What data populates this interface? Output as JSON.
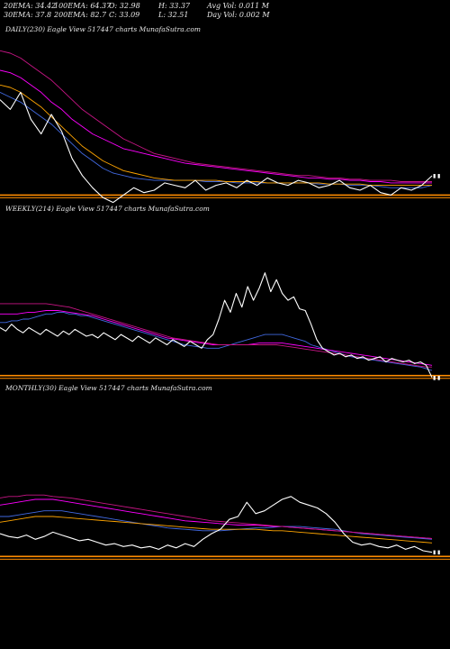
{
  "stats": {
    "ema20": "20EMA: 34.42",
    "ema100": "100EMA: 64.37",
    "open": "O: 32.98",
    "high": "H: 33.37",
    "avg_vol": "Avg Vol: 0.011  M",
    "ema30": "30EMA: 37.8",
    "ema200": "200EMA: 82.7",
    "close": "C: 33.09",
    "low": "L: 32.51",
    "day_vol": "Day Vol: 0.002  M"
  },
  "colors": {
    "background": "#000000",
    "price": "#ffffff",
    "baseline": "#ff8c00",
    "ema_short": "#4169e1",
    "ema_mid": "#ff00ff",
    "ema_long": "#c71585",
    "ema_extra": "#ffa500"
  },
  "chart_data": [
    {
      "type": "line",
      "title": "DAILY(230) Eagle   View  517447 charts MunafaSutra.com",
      "series": [
        {
          "role": "price",
          "color": "#ffffff",
          "values": [
            36.2,
            35.8,
            36.5,
            35.4,
            34.8,
            35.6,
            34.9,
            33.8,
            33.1,
            32.6,
            32.2,
            32.0,
            32.3,
            32.6,
            32.4,
            32.5,
            32.8,
            32.7,
            32.6,
            32.9,
            32.5,
            32.7,
            32.8,
            32.6,
            32.9,
            32.7,
            33.0,
            32.8,
            32.7,
            32.9,
            32.8,
            32.6,
            32.7,
            32.9,
            32.6,
            32.5,
            32.7,
            32.4,
            32.3,
            32.6,
            32.5,
            32.7,
            33.09
          ]
        },
        {
          "role": "ema",
          "color": "#4169e1",
          "values": [
            36.5,
            36.3,
            36.1,
            35.8,
            35.5,
            35.2,
            34.8,
            34.4,
            34.0,
            33.7,
            33.4,
            33.2,
            33.1,
            33.0,
            32.95,
            32.9,
            32.9,
            32.9,
            32.9,
            32.9,
            32.85,
            32.85,
            32.85,
            32.8,
            32.8,
            32.8,
            32.8,
            32.8,
            32.8,
            32.8,
            32.8,
            32.75,
            32.75,
            32.75,
            32.7,
            32.7,
            32.7,
            32.65,
            32.6,
            32.6,
            32.6,
            32.6,
            32.7
          ]
        },
        {
          "role": "ema",
          "color": "#ff00ff",
          "values": [
            37.4,
            37.3,
            37.1,
            36.8,
            36.5,
            36.1,
            35.8,
            35.4,
            35.1,
            34.8,
            34.6,
            34.4,
            34.2,
            34.1,
            34.0,
            33.9,
            33.8,
            33.7,
            33.6,
            33.55,
            33.5,
            33.45,
            33.4,
            33.35,
            33.3,
            33.25,
            33.2,
            33.15,
            33.1,
            33.05,
            33.0,
            33.0,
            32.95,
            32.95,
            32.9,
            32.9,
            32.85,
            32.85,
            32.8,
            32.8,
            32.8,
            32.8,
            32.8
          ]
        },
        {
          "role": "ema",
          "color": "#c71585",
          "values": [
            38.2,
            38.1,
            37.9,
            37.6,
            37.3,
            37.0,
            36.6,
            36.2,
            35.8,
            35.5,
            35.2,
            34.9,
            34.6,
            34.4,
            34.2,
            34.0,
            33.9,
            33.8,
            33.7,
            33.6,
            33.55,
            33.5,
            33.45,
            33.4,
            33.35,
            33.3,
            33.25,
            33.2,
            33.15,
            33.1,
            33.1,
            33.05,
            33.0,
            33.0,
            32.95,
            32.95,
            32.9,
            32.9,
            32.9,
            32.85,
            32.85,
            32.85,
            32.85
          ]
        },
        {
          "role": "ema",
          "color": "#ffa500",
          "values": [
            36.8,
            36.7,
            36.5,
            36.2,
            35.9,
            35.5,
            35.1,
            34.7,
            34.3,
            34.0,
            33.7,
            33.5,
            33.3,
            33.2,
            33.1,
            33.0,
            32.95,
            32.9,
            32.9,
            32.9,
            32.9,
            32.9,
            32.85,
            32.85,
            32.85,
            32.85,
            32.8,
            32.8,
            32.8,
            32.8,
            32.8,
            32.8,
            32.75,
            32.75,
            32.75,
            32.75,
            32.7,
            32.7,
            32.7,
            32.7,
            32.7,
            32.7,
            32.7
          ]
        }
      ],
      "baseline": 32.3,
      "ylim": [
        31.8,
        38.8
      ]
    },
    {
      "type": "line",
      "title": "WEEKLY(214) Eagle   View  517447 charts MunafaSutra.com",
      "series": [
        {
          "role": "price",
          "color": "#ffffff",
          "values": [
            36.0,
            35.8,
            36.2,
            35.9,
            35.7,
            36.0,
            35.8,
            35.6,
            35.9,
            35.7,
            35.5,
            35.8,
            35.6,
            35.9,
            35.7,
            35.5,
            35.6,
            35.4,
            35.7,
            35.5,
            35.3,
            35.6,
            35.4,
            35.2,
            35.5,
            35.3,
            35.1,
            35.4,
            35.2,
            35.0,
            35.3,
            35.1,
            34.9,
            35.2,
            35.0,
            34.8,
            35.3,
            35.6,
            36.5,
            37.6,
            36.9,
            38.0,
            37.2,
            38.4,
            37.6,
            38.3,
            39.2,
            38.1,
            38.8,
            38.0,
            37.6,
            37.8,
            37.1,
            37.0,
            36.2,
            35.3,
            34.8,
            34.6,
            34.4,
            34.5,
            34.3,
            34.4,
            34.2,
            34.3,
            34.1,
            34.2,
            34.3,
            34.0,
            34.2,
            34.1,
            34.0,
            34.1,
            33.9,
            34.0,
            33.8,
            33.09
          ]
        },
        {
          "role": "ema",
          "color": "#4169e1",
          "values": [
            36.3,
            36.3,
            36.4,
            36.4,
            36.5,
            36.5,
            36.6,
            36.7,
            36.8,
            36.8,
            36.9,
            36.9,
            36.8,
            36.8,
            36.7,
            36.7,
            36.6,
            36.5,
            36.4,
            36.3,
            36.2,
            36.1,
            36.0,
            35.9,
            35.8,
            35.7,
            35.6,
            35.5,
            35.4,
            35.3,
            35.2,
            35.1,
            35.0,
            34.95,
            34.9,
            34.85,
            34.8,
            34.8,
            34.8,
            34.9,
            35.0,
            35.1,
            35.2,
            35.3,
            35.4,
            35.5,
            35.6,
            35.6,
            35.6,
            35.6,
            35.5,
            35.4,
            35.3,
            35.2,
            35.0,
            34.9,
            34.8,
            34.7,
            34.6,
            34.5,
            34.4,
            34.3,
            34.25,
            34.2,
            34.15,
            34.1,
            34.05,
            34.0,
            33.95,
            33.9,
            33.85,
            33.8,
            33.75,
            33.7,
            33.6,
            33.5
          ]
        },
        {
          "role": "ema",
          "color": "#ff00ff",
          "values": [
            36.8,
            36.8,
            36.8,
            36.8,
            36.85,
            36.9,
            36.9,
            36.95,
            37.0,
            37.0,
            37.0,
            36.95,
            36.9,
            36.85,
            36.8,
            36.75,
            36.7,
            36.6,
            36.5,
            36.4,
            36.3,
            36.2,
            36.1,
            36.0,
            35.9,
            35.8,
            35.7,
            35.6,
            35.5,
            35.4,
            35.35,
            35.3,
            35.25,
            35.2,
            35.15,
            35.1,
            35.05,
            35.0,
            35.0,
            35.0,
            35.0,
            35.0,
            35.0,
            35.0,
            35.05,
            35.1,
            35.1,
            35.1,
            35.1,
            35.1,
            35.05,
            35.0,
            34.95,
            34.9,
            34.85,
            34.8,
            34.75,
            34.7,
            34.65,
            34.6,
            34.55,
            34.5,
            34.45,
            34.4,
            34.35,
            34.3,
            34.25,
            34.2,
            34.15,
            34.1,
            34.05,
            34.0,
            33.95,
            33.9,
            33.85,
            33.8
          ]
        },
        {
          "role": "ema",
          "color": "#c71585",
          "values": [
            37.4,
            37.4,
            37.4,
            37.4,
            37.4,
            37.4,
            37.4,
            37.4,
            37.4,
            37.35,
            37.3,
            37.25,
            37.2,
            37.1,
            37.0,
            36.9,
            36.8,
            36.7,
            36.6,
            36.5,
            36.4,
            36.3,
            36.2,
            36.1,
            36.0,
            35.9,
            35.8,
            35.7,
            35.6,
            35.5,
            35.4,
            35.35,
            35.3,
            35.25,
            35.2,
            35.15,
            35.1,
            35.05,
            35.0,
            35.0,
            35.0,
            35.0,
            35.0,
            35.0,
            35.0,
            35.0,
            35.0,
            35.0,
            35.0,
            34.95,
            34.9,
            34.85,
            34.8,
            34.75,
            34.7,
            34.65,
            34.6,
            34.55,
            34.5,
            34.45,
            34.4,
            34.35,
            34.3,
            34.25,
            34.2,
            34.15,
            34.1,
            34.05,
            34.0,
            33.95,
            33.9,
            33.85,
            33.8,
            33.75,
            33.7,
            33.7
          ]
        }
      ],
      "baseline": 33.2,
      "ylim": [
        32.5,
        42.5
      ]
    },
    {
      "type": "line",
      "title": "MONTHLY(30) Eagle   View  517447 charts MunafaSutra.com",
      "series": [
        {
          "role": "price",
          "color": "#ffffff",
          "values": [
            34.4,
            34.2,
            34.1,
            34.3,
            34.0,
            34.2,
            34.5,
            34.3,
            34.1,
            33.9,
            34.0,
            33.8,
            33.6,
            33.7,
            33.5,
            33.6,
            33.4,
            33.5,
            33.3,
            33.6,
            33.4,
            33.7,
            33.5,
            34.0,
            34.4,
            34.7,
            35.4,
            35.6,
            36.6,
            35.8,
            36.0,
            36.4,
            36.8,
            37.0,
            36.6,
            36.4,
            36.2,
            35.8,
            35.2,
            34.4,
            33.8,
            33.6,
            33.7,
            33.5,
            33.4,
            33.6,
            33.3,
            33.5,
            33.2,
            33.09
          ]
        },
        {
          "role": "ema",
          "color": "#4169e1",
          "values": [
            35.6,
            35.6,
            35.7,
            35.8,
            35.9,
            36.0,
            36.0,
            36.0,
            35.9,
            35.8,
            35.7,
            35.6,
            35.5,
            35.4,
            35.3,
            35.2,
            35.1,
            35.0,
            34.9,
            34.8,
            34.75,
            34.7,
            34.65,
            34.6,
            34.6,
            34.6,
            34.65,
            34.7,
            34.75,
            34.8,
            34.8,
            34.85,
            34.9,
            34.9,
            34.9,
            34.85,
            34.8,
            34.75,
            34.7,
            34.6,
            34.5,
            34.4,
            34.35,
            34.3,
            34.25,
            34.2,
            34.15,
            34.1,
            34.05,
            34.0
          ]
        },
        {
          "role": "ema",
          "color": "#ff00ff",
          "values": [
            36.4,
            36.5,
            36.6,
            36.7,
            36.8,
            36.8,
            36.8,
            36.7,
            36.6,
            36.5,
            36.4,
            36.3,
            36.2,
            36.1,
            36.0,
            35.9,
            35.8,
            35.7,
            35.6,
            35.5,
            35.4,
            35.3,
            35.25,
            35.2,
            35.15,
            35.1,
            35.05,
            35.0,
            35.0,
            35.0,
            34.95,
            34.9,
            34.9,
            34.85,
            34.8,
            34.75,
            34.7,
            34.65,
            34.6,
            34.55,
            34.5,
            34.45,
            34.4,
            34.35,
            34.3,
            34.25,
            34.2,
            34.15,
            34.1,
            34.05
          ]
        },
        {
          "role": "ema",
          "color": "#c71585",
          "values": [
            36.9,
            37.0,
            37.0,
            37.1,
            37.1,
            37.1,
            37.0,
            36.95,
            36.9,
            36.8,
            36.7,
            36.6,
            36.5,
            36.4,
            36.3,
            36.2,
            36.1,
            36.0,
            35.9,
            35.8,
            35.7,
            35.6,
            35.5,
            35.4,
            35.3,
            35.25,
            35.2,
            35.15,
            35.1,
            35.05,
            35.0,
            34.95,
            34.9,
            34.85,
            34.8,
            34.75,
            34.7,
            34.65,
            34.6,
            34.55,
            34.5,
            34.45,
            34.4,
            34.35,
            34.3,
            34.25,
            34.2,
            34.15,
            34.1,
            34.05
          ]
        },
        {
          "role": "ema",
          "color": "#ffa500",
          "values": [
            35.2,
            35.3,
            35.4,
            35.5,
            35.6,
            35.6,
            35.6,
            35.55,
            35.5,
            35.45,
            35.4,
            35.35,
            35.3,
            35.25,
            35.2,
            35.15,
            35.1,
            35.05,
            35.0,
            34.95,
            34.9,
            34.85,
            34.8,
            34.75,
            34.7,
            34.7,
            34.7,
            34.7,
            34.7,
            34.7,
            34.65,
            34.6,
            34.6,
            34.55,
            34.5,
            34.45,
            34.4,
            34.35,
            34.3,
            34.25,
            34.2,
            34.15,
            34.1,
            34.05,
            34.0,
            33.95,
            33.9,
            33.85,
            33.8,
            33.75
          ]
        }
      ],
      "baseline": 32.8,
      "ylim": [
        32.0,
        44.0
      ]
    }
  ]
}
